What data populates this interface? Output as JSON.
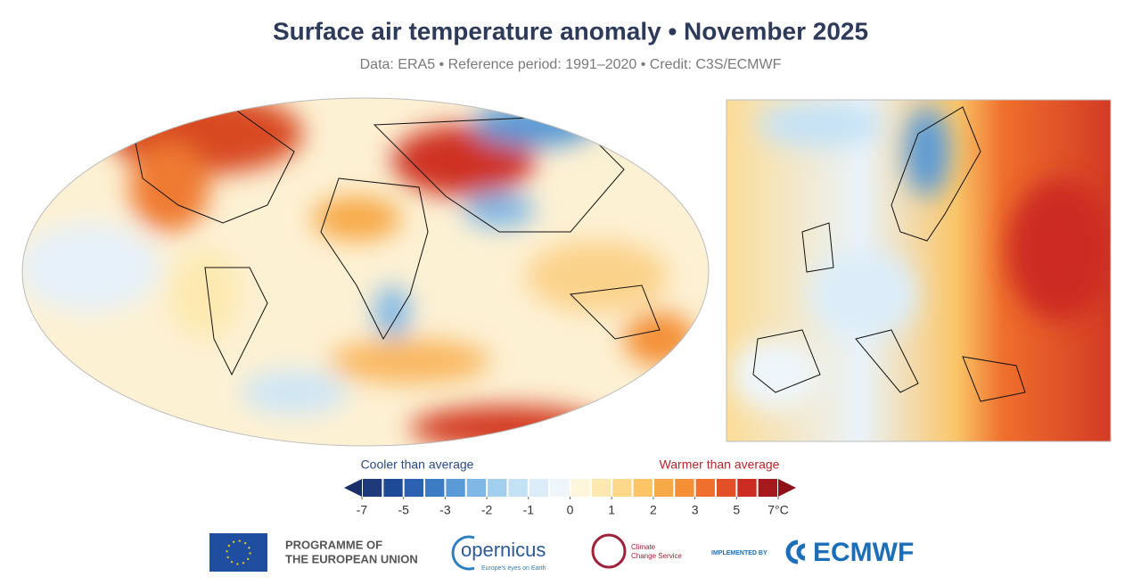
{
  "header": {
    "title": "Surface air temperature anomaly • November 2025",
    "subtitle": "Data: ERA5 • Reference period: 1991–2020 • Credit: C3S/ECMWF"
  },
  "legend": {
    "cooler_label": "Cooler than average",
    "warmer_label": "Warmer than average",
    "bounds": [
      -7,
      -6,
      -5,
      -4,
      -3,
      -2.5,
      -2,
      -1.5,
      -1,
      -0.5,
      0,
      0.5,
      1,
      1.5,
      2,
      2.5,
      3,
      4,
      5,
      6,
      7
    ],
    "colors": [
      "#1f3a7a",
      "#1d4a96",
      "#2b61b0",
      "#3c7cc4",
      "#5a9ad6",
      "#7fb7e6",
      "#a3cfef",
      "#c4e2f6",
      "#dcedf9",
      "#eef6fb",
      "#fdf6dc",
      "#fde9b0",
      "#fcd88a",
      "#fbc567",
      "#f7a947",
      "#f48f35",
      "#ef6f2c",
      "#e34f26",
      "#cc2c21",
      "#a61a1e"
    ],
    "low_color": "#17306a",
    "high_color": "#8e1219",
    "ticks": [
      -7,
      -5,
      -3,
      -2,
      -1,
      0,
      1,
      2,
      3,
      5,
      {
        "value": 7,
        "label": "7°C"
      }
    ]
  },
  "footer": {
    "eu_line1": "PROGRAMME OF",
    "eu_line2": "THE EUROPEAN UNION",
    "copernicus": "opernicus",
    "copernicus_tagline": "Europe's eyes on Earth",
    "c3s_line1": "Climate",
    "c3s_line2": "Change Service",
    "implemented_by": "IMPLEMENTED BY",
    "ecmwf": "ECMWF"
  }
}
